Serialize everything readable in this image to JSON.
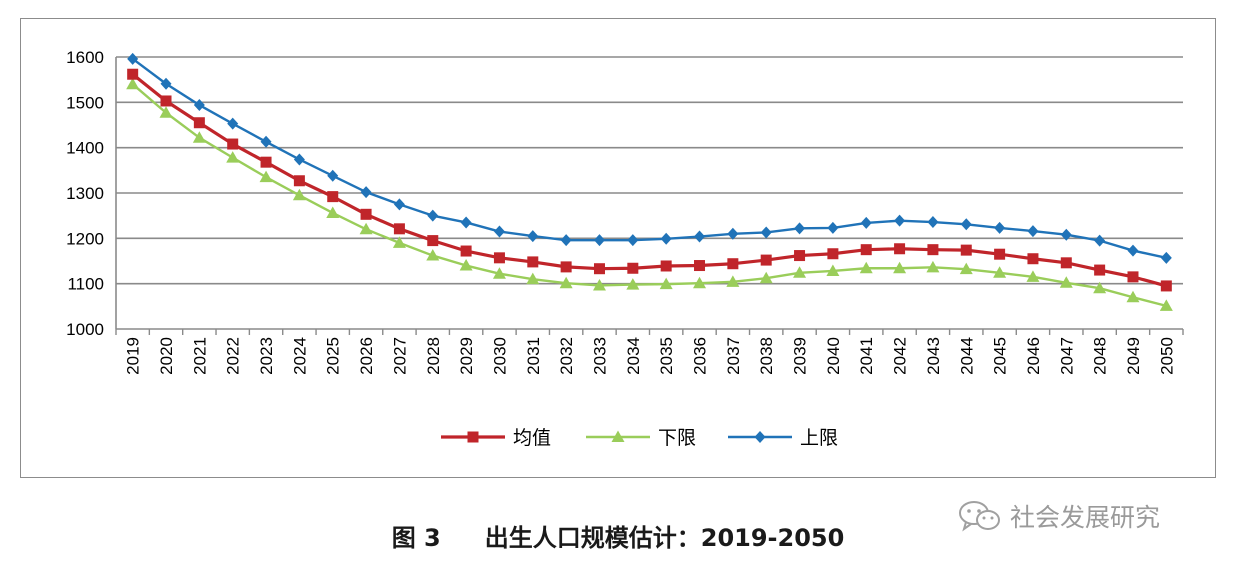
{
  "caption": {
    "figure_number": "图 3",
    "title": "出生人口规模估计：2019-2050"
  },
  "watermark": {
    "text": "社会发展研究",
    "icon": "wechat-icon"
  },
  "chart_data": {
    "type": "line",
    "title": "",
    "xlabel": "",
    "ylabel": "",
    "categories": [
      "2019",
      "2020",
      "2021",
      "2022",
      "2023",
      "2024",
      "2025",
      "2026",
      "2027",
      "2028",
      "2029",
      "2030",
      "2031",
      "2032",
      "2033",
      "2034",
      "2035",
      "2036",
      "2037",
      "2038",
      "2039",
      "2040",
      "2041",
      "2042",
      "2043",
      "2044",
      "2045",
      "2046",
      "2047",
      "2048",
      "2049",
      "2050"
    ],
    "ylim": [
      1000,
      1600
    ],
    "yticks": [
      "1000",
      "1100",
      "1200",
      "1300",
      "1400",
      "1500",
      "1600"
    ],
    "grid": "horizontal",
    "legend_position": "bottom",
    "series": [
      {
        "name": "均值",
        "color": "#c0252a",
        "marker": "square",
        "values": [
          1562,
          1503,
          1455,
          1408,
          1368,
          1327,
          1292,
          1253,
          1221,
          1195,
          1172,
          1157,
          1148,
          1137,
          1133,
          1134,
          1139,
          1140,
          1144,
          1152,
          1162,
          1166,
          1175,
          1177,
          1175,
          1174,
          1165,
          1155,
          1146,
          1130,
          1115,
          1095
        ]
      },
      {
        "name": "下限",
        "color": "#9acd5a",
        "marker": "triangle",
        "values": [
          1540,
          1477,
          1422,
          1378,
          1335,
          1295,
          1256,
          1220,
          1190,
          1162,
          1140,
          1122,
          1110,
          1101,
          1096,
          1098,
          1099,
          1101,
          1104,
          1112,
          1124,
          1128,
          1134,
          1134,
          1136,
          1132,
          1124,
          1115,
          1102,
          1090,
          1070,
          1051
        ]
      },
      {
        "name": "上限",
        "color": "#2073b8",
        "marker": "diamond",
        "values": [
          1596,
          1541,
          1494,
          1453,
          1413,
          1374,
          1338,
          1302,
          1275,
          1250,
          1235,
          1215,
          1205,
          1196,
          1196,
          1196,
          1199,
          1204,
          1210,
          1213,
          1222,
          1223,
          1234,
          1239,
          1236,
          1231,
          1223,
          1216,
          1208,
          1195,
          1173,
          1157
        ]
      }
    ]
  }
}
